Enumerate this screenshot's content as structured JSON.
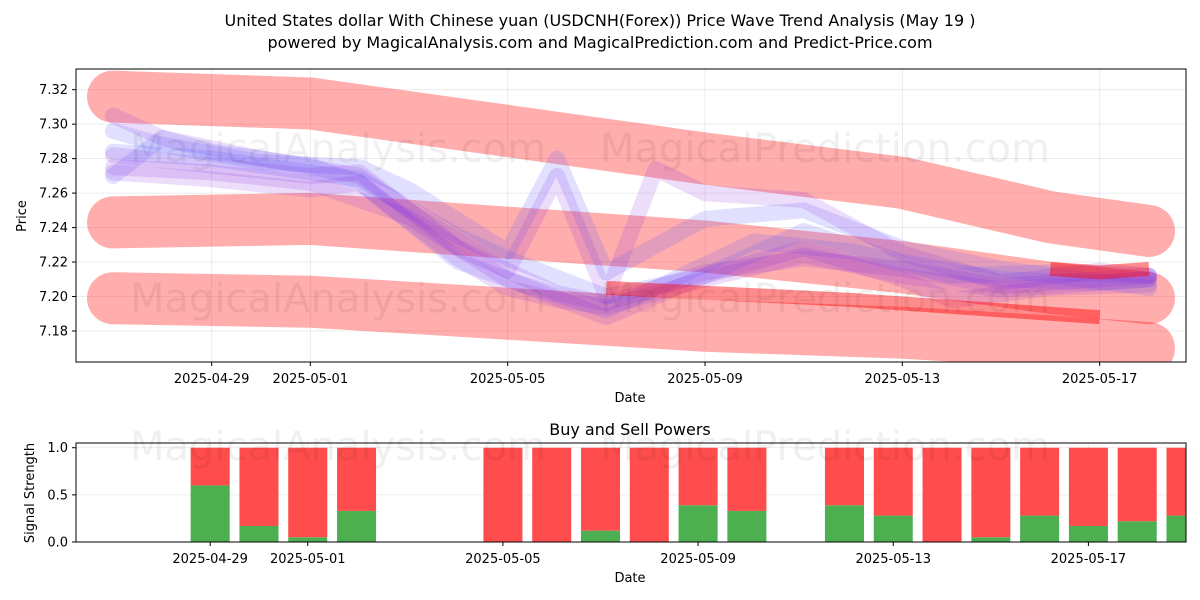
{
  "title_line1": "United States dollar With Chinese yuan (USDCNH(Forex)) Price Wave Trend Analysis (May 19 )",
  "title_line2": "powered by MagicalAnalysis.com and MagicalPrediction.com and Predict-Price.com",
  "watermark_left": "MagicalAnalysis.com",
  "watermark_right": "MagicalPrediction.com",
  "colors": {
    "band": "#ff0000",
    "wave_blue": "#5a5aff",
    "wave_purple": "#8a2be2",
    "buy": "#4caf50",
    "sell": "#ff4d4d"
  },
  "chart_data": [
    {
      "type": "line",
      "xlabel": "Date",
      "ylabel": "Price",
      "x_ticks": [
        "2025-04-29",
        "2025-05-01",
        "2025-05-05",
        "2025-05-09",
        "2025-05-13",
        "2025-05-17"
      ],
      "y_ticks": [
        7.18,
        7.2,
        7.22,
        7.24,
        7.26,
        7.28,
        7.3,
        7.32
      ],
      "ylim": [
        7.162,
        7.332
      ],
      "xlim": [
        "2025-04-26T06:00",
        "2025-05-18T18:00"
      ],
      "grid": true,
      "bands": [
        {
          "name": "",
          "points": [
            [
              "2025-04-27",
              7.316
            ],
            [
              "2025-05-01",
              7.312
            ],
            [
              "2025-05-05",
              7.296
            ],
            [
              "2025-05-09",
              7.28
            ],
            [
              "2025-05-13",
              7.266
            ],
            [
              "2025-05-16",
              7.246
            ],
            [
              "2025-05-18",
              7.238
            ]
          ]
        },
        {
          "name": "",
          "points": [
            [
              "2025-04-27",
              7.243
            ],
            [
              "2025-05-01",
              7.245
            ],
            [
              "2025-05-05",
              7.237
            ],
            [
              "2025-05-09",
              7.229
            ],
            [
              "2025-05-13",
              7.217
            ],
            [
              "2025-05-16",
              7.205
            ],
            [
              "2025-05-18",
              7.199
            ]
          ]
        },
        {
          "name": "",
          "points": [
            [
              "2025-04-27",
              7.199
            ],
            [
              "2025-05-01",
              7.197
            ],
            [
              "2025-05-05",
              7.19
            ],
            [
              "2025-05-09",
              7.183
            ],
            [
              "2025-05-13",
              7.179
            ],
            [
              "2025-05-16",
              7.174
            ],
            [
              "2025-05-18",
              7.17
            ]
          ]
        }
      ],
      "waves": [
        {
          "name": "",
          "color": "blue",
          "points": [
            [
              "2025-04-27",
              7.284
            ],
            [
              "2025-04-29",
              7.28
            ],
            [
              "2025-05-01",
              7.272
            ],
            [
              "2025-05-02",
              7.268
            ],
            [
              "2025-05-04",
              7.235
            ],
            [
              "2025-05-05",
              7.222
            ],
            [
              "2025-05-07",
              7.2
            ],
            [
              "2025-05-09",
              7.212
            ],
            [
              "2025-05-11",
              7.238
            ],
            [
              "2025-05-13",
              7.22
            ],
            [
              "2025-05-15",
              7.21
            ],
            [
              "2025-05-17",
              7.208
            ],
            [
              "2025-05-18",
              7.21
            ]
          ]
        },
        {
          "name": "",
          "color": "blue",
          "points": [
            [
              "2025-04-27",
              7.296
            ],
            [
              "2025-04-28",
              7.288
            ],
            [
              "2025-04-30",
              7.278
            ],
            [
              "2025-05-02",
              7.275
            ],
            [
              "2025-05-03",
              7.262
            ],
            [
              "2025-05-05",
              7.226
            ],
            [
              "2025-05-06",
              7.28
            ],
            [
              "2025-05-07",
              7.214
            ],
            [
              "2025-05-09",
              7.245
            ],
            [
              "2025-05-11",
              7.25
            ],
            [
              "2025-05-13",
              7.228
            ],
            [
              "2025-05-15",
              7.216
            ],
            [
              "2025-05-18",
              7.205
            ]
          ]
        },
        {
          "name": "",
          "color": "blue",
          "points": [
            [
              "2025-04-27",
              7.27
            ],
            [
              "2025-04-28",
              7.292
            ],
            [
              "2025-04-29",
              7.284
            ],
            [
              "2025-05-01",
              7.276
            ],
            [
              "2025-05-02",
              7.266
            ],
            [
              "2025-05-04",
              7.22
            ],
            [
              "2025-05-05",
              7.21
            ],
            [
              "2025-05-07",
              7.192
            ],
            [
              "2025-05-08",
              7.205
            ],
            [
              "2025-05-10",
              7.232
            ],
            [
              "2025-05-12",
              7.226
            ],
            [
              "2025-05-14",
              7.212
            ],
            [
              "2025-05-16",
              7.214
            ],
            [
              "2025-05-18",
              7.212
            ]
          ]
        },
        {
          "name": "",
          "color": "purple",
          "points": [
            [
              "2025-04-27",
              7.272
            ],
            [
              "2025-04-29",
              7.268
            ],
            [
              "2025-05-01",
              7.262
            ],
            [
              "2025-05-02",
              7.266
            ],
            [
              "2025-05-04",
              7.222
            ],
            [
              "2025-05-05",
              7.205
            ],
            [
              "2025-05-06",
              7.198
            ],
            [
              "2025-05-07",
              7.194
            ],
            [
              "2025-05-09",
              7.21
            ],
            [
              "2025-05-11",
              7.224
            ],
            [
              "2025-05-13",
              7.212
            ],
            [
              "2025-05-15",
              7.204
            ],
            [
              "2025-05-17",
              7.208
            ],
            [
              "2025-05-18",
              7.21
            ]
          ]
        },
        {
          "name": "",
          "color": "purple",
          "points": [
            [
              "2025-04-27",
              7.305
            ],
            [
              "2025-04-28",
              7.292
            ],
            [
              "2025-04-30",
              7.28
            ],
            [
              "2025-05-02",
              7.27
            ],
            [
              "2025-05-03",
              7.25
            ],
            [
              "2025-05-05",
              7.215
            ],
            [
              "2025-05-06",
              7.27
            ],
            [
              "2025-05-07",
              7.2
            ],
            [
              "2025-05-08",
              7.274
            ],
            [
              "2025-05-09",
              7.26
            ],
            [
              "2025-05-11",
              7.256
            ],
            [
              "2025-05-13",
              7.225
            ],
            [
              "2025-05-15",
              7.208
            ],
            [
              "2025-05-17",
              7.215
            ],
            [
              "2025-05-18",
              7.212
            ]
          ]
        },
        {
          "name": "",
          "color": "purple",
          "points": [
            [
              "2025-04-27",
              7.275
            ],
            [
              "2025-04-29",
              7.272
            ],
            [
              "2025-05-01",
              7.266
            ],
            [
              "2025-05-03",
              7.246
            ],
            [
              "2025-05-05",
              7.21
            ],
            [
              "2025-05-07",
              7.188
            ],
            [
              "2025-05-09",
              7.212
            ],
            [
              "2025-05-11",
              7.228
            ],
            [
              "2025-05-13",
              7.21
            ],
            [
              "2025-05-14",
              7.198
            ],
            [
              "2025-05-16",
              7.205
            ],
            [
              "2025-05-18",
              7.207
            ]
          ]
        },
        {
          "name": "",
          "color": "purple",
          "points": [
            [
              "2025-04-27",
              7.282
            ],
            [
              "2025-04-29",
              7.276
            ],
            [
              "2025-05-01",
              7.27
            ],
            [
              "2025-05-02",
              7.272
            ],
            [
              "2025-05-04",
              7.228
            ],
            [
              "2025-05-06",
              7.202
            ],
            [
              "2025-05-07",
              7.196
            ],
            [
              "2025-05-09",
              7.214
            ],
            [
              "2025-05-11",
              7.222
            ],
            [
              "2025-05-13",
              7.216
            ],
            [
              "2025-05-15",
              7.206
            ],
            [
              "2025-05-17",
              7.21
            ],
            [
              "2025-05-18",
              7.212
            ]
          ]
        }
      ],
      "arrows": [
        {
          "points": [
            [
              "2025-05-07",
              7.205
            ],
            [
              "2025-05-12",
              7.198
            ],
            [
              "2025-05-17",
              7.188
            ]
          ]
        },
        {
          "points": [
            [
              "2025-05-16",
              7.216
            ],
            [
              "2025-05-17",
              7.214
            ],
            [
              "2025-05-18",
              7.216
            ]
          ]
        }
      ]
    },
    {
      "type": "bar",
      "title": "Buy and Sell Powers",
      "xlabel": "Date",
      "ylabel": "Signal Strength",
      "x_ticks": [
        "2025-04-29",
        "2025-05-01",
        "2025-05-05",
        "2025-05-09",
        "2025-05-13",
        "2025-05-17"
      ],
      "y_ticks": [
        0.0,
        0.5,
        1.0
      ],
      "ylim": [
        0,
        1.05
      ],
      "xlim": [
        "2025-04-26T06:00",
        "2025-05-19T00:00"
      ],
      "grid": true,
      "dates": [
        "2025-04-29",
        "2025-04-30",
        "2025-05-01",
        "2025-05-02",
        "2025-05-05",
        "2025-05-06",
        "2025-05-07",
        "2025-05-08",
        "2025-05-09",
        "2025-05-10",
        "2025-05-12",
        "2025-05-13",
        "2025-05-14",
        "2025-05-15",
        "2025-05-16",
        "2025-05-17",
        "2025-05-18",
        "2025-05-19"
      ],
      "buy": [
        0.6,
        0.17,
        0.05,
        0.33,
        0.0,
        0.0,
        0.12,
        0.0,
        0.39,
        0.33,
        0.39,
        0.28,
        0.0,
        0.05,
        0.28,
        0.17,
        0.22,
        0.28
      ],
      "sell": [
        0.4,
        0.83,
        0.95,
        0.67,
        1.0,
        1.0,
        0.88,
        1.0,
        0.61,
        0.67,
        0.61,
        0.72,
        1.0,
        0.95,
        0.72,
        0.83,
        0.78,
        0.72
      ]
    }
  ]
}
